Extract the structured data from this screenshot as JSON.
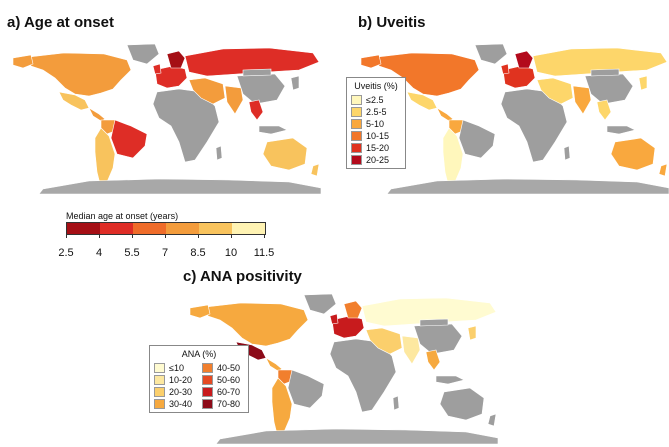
{
  "panels": {
    "a": {
      "title": "a) Age at onset"
    },
    "b": {
      "title": "b) Uveitis"
    },
    "c": {
      "title": "c) ANA positivity"
    }
  },
  "colors": {
    "land": "#9e9e9e",
    "antarctica": "#a8a8a8"
  },
  "age_legend": {
    "title": "Median age at onset (years)",
    "ticks": [
      "2.5",
      "4",
      "5.5",
      "7",
      "8.5",
      "10",
      "11.5"
    ],
    "colors": [
      "#a50f15",
      "#de2d26",
      "#ef6c2a",
      "#f39c3c",
      "#f8c35d",
      "#fff3b3"
    ]
  },
  "uveitis_legend": {
    "title": "Uveitis (%)",
    "items": [
      {
        "label": "≤2.5",
        "color": "#fff7bc"
      },
      {
        "label": "2.5-5",
        "color": "#fdd66a"
      },
      {
        "label": "5-10",
        "color": "#f9a83e"
      },
      {
        "label": "10-15",
        "color": "#f2772a"
      },
      {
        "label": "15-20",
        "color": "#e0331f"
      },
      {
        "label": "20-25",
        "color": "#b30a1c"
      }
    ]
  },
  "ana_legend": {
    "title": "ANA (%)",
    "items": [
      {
        "label": "≤10",
        "color": "#fffbd1"
      },
      {
        "label": "10-20",
        "color": "#fde8a0"
      },
      {
        "label": "20-30",
        "color": "#fbcf6c"
      },
      {
        "label": "30-40",
        "color": "#f6a93f"
      },
      {
        "label": "40-50",
        "color": "#f17f2d"
      },
      {
        "label": "50-60",
        "color": "#e54a23"
      },
      {
        "label": "60-70",
        "color": "#c81b1d"
      },
      {
        "label": "70-80",
        "color": "#8c0a18"
      }
    ]
  },
  "maps": {
    "age": {
      "north_america": "#f39c3c",
      "greenland": "#9e9e9e",
      "mexico": "#f8c35d",
      "central_america": "#f39c3c",
      "south_america": "#f8c35d",
      "brazil": "#de2d26",
      "colombia": "#f39c3c",
      "western_europe": "#de2d26",
      "scandinavia": "#a50f15",
      "russia": "#de2d26",
      "africa": "#9e9e9e",
      "middle_east": "#f39c3c",
      "india": "#f39c3c",
      "china": "#9e9e9e",
      "southeast_asia": "#de2d26",
      "australia": "#f8c35d",
      "japan": "#9e9e9e"
    },
    "uveitis": {
      "north_america": "#f2772a",
      "greenland": "#9e9e9e",
      "mexico": "#fdd66a",
      "central_america": "#f9a83e",
      "south_america": "#fff7bc",
      "brazil": "#9e9e9e",
      "colombia": "#f9a83e",
      "western_europe": "#e0331f",
      "scandinavia": "#b30a1c",
      "russia": "#fdd66a",
      "africa": "#9e9e9e",
      "middle_east": "#fdd66a",
      "india": "#f9a83e",
      "china": "#9e9e9e",
      "southeast_asia": "#fdd66a",
      "australia": "#f9a83e",
      "japan": "#fdd66a"
    },
    "ana": {
      "north_america": "#f6a93f",
      "greenland": "#9e9e9e",
      "mexico": "#8c0a18",
      "central_america": "#f6a93f",
      "south_america": "#f6a93f",
      "brazil": "#9e9e9e",
      "colombia": "#f17f2d",
      "western_europe": "#c81b1d",
      "scandinavia": "#f17f2d",
      "russia": "#fffbd1",
      "africa": "#9e9e9e",
      "middle_east": "#fbcf6c",
      "india": "#fde8a0",
      "china": "#9e9e9e",
      "southeast_asia": "#f6a93f",
      "australia": "#9e9e9e",
      "japan": "#fbcf6c"
    }
  }
}
